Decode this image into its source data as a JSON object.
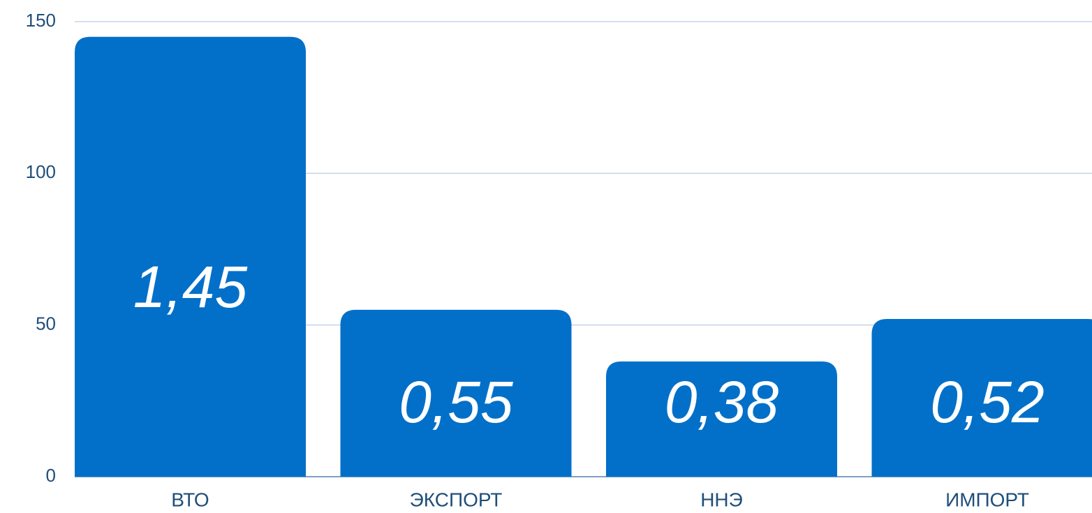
{
  "chart_data": {
    "type": "bar",
    "categories": [
      "ВТО",
      "ЭКСПОРТ",
      "ННЭ",
      "ИМПОРТ"
    ],
    "values": [
      145,
      55,
      38,
      52
    ],
    "value_labels": [
      "1,45",
      "0,55",
      "0,38",
      "0,52"
    ],
    "color": "#0270c9",
    "ylim": [
      0,
      150
    ],
    "yticks": [
      0,
      50,
      100,
      150
    ],
    "grid": true
  }
}
